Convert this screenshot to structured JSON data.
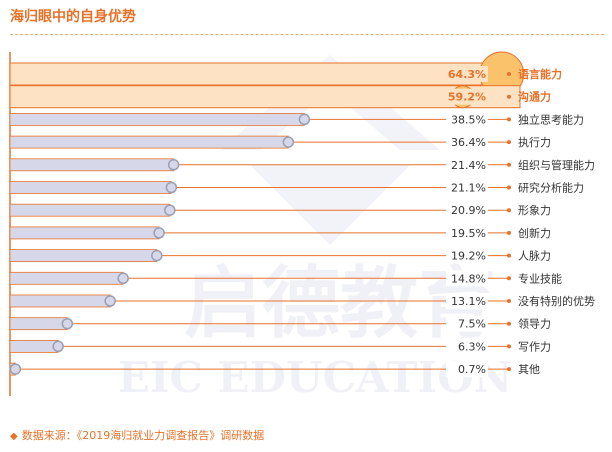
{
  "title": "海归眼中的自身优势",
  "source": "数据来源：《2019海归就业力调查报告》调研数据",
  "watermark": {
    "cn": "启德教育",
    "en": "EIC EDUCATION"
  },
  "colors": {
    "accent": "#e8722a",
    "highlight_fill": "#fde3c4",
    "highlight_circle": "#f9c26b",
    "bar_fill": "#d6d8ea",
    "bar_stroke": "#e8722a",
    "marker_fill": "#d6d8ea",
    "marker_stroke": "#9a9fb3",
    "label": "#333333"
  },
  "chart_data": {
    "type": "bar",
    "orientation": "horizontal",
    "title": "海归眼中的自身优势",
    "unit": "%",
    "xlim": [
      0,
      68
    ],
    "categories": [
      "语言能力",
      "沟通力",
      "独立思考能力",
      "执行力",
      "组织与管理能力",
      "研究分析能力",
      "形象力",
      "创新力",
      "人脉力",
      "专业技能",
      "没有特别的优势",
      "领导力",
      "写作力",
      "其他"
    ],
    "values": [
      64.3,
      59.2,
      38.5,
      36.4,
      21.4,
      21.1,
      20.9,
      19.5,
      19.2,
      14.8,
      13.1,
      7.5,
      6.3,
      0.7
    ],
    "value_labels": [
      "64.3%",
      "59.2%",
      "38.5%",
      "36.4%",
      "21.4%",
      "21.1%",
      "20.9%",
      "19.5%",
      "19.2%",
      "14.8%",
      "13.1%",
      "7.5%",
      "6.3%",
      "0.7%"
    ],
    "highlighted": [
      0,
      1
    ]
  }
}
